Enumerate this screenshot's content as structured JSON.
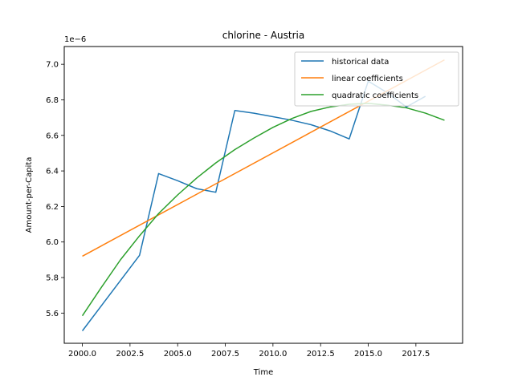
{
  "chart_data": {
    "type": "line",
    "title": "chlorine - Austria",
    "xlabel": "Time",
    "ylabel": "Amount-per-Capita",
    "y_scale_label": "1e−6",
    "xlim": [
      1999.05,
      2019.95
    ],
    "ylim": [
      5.43,
      7.1
    ],
    "xticks": [
      2000.0,
      2002.5,
      2005.0,
      2007.5,
      2010.0,
      2012.5,
      2015.0,
      2017.5
    ],
    "xtick_labels": [
      "2000.0",
      "2002.5",
      "2005.0",
      "2007.5",
      "2010.0",
      "2012.5",
      "2015.0",
      "2017.5"
    ],
    "yticks": [
      5.6,
      5.8,
      6.0,
      6.2,
      6.4,
      6.6,
      6.8,
      7.0
    ],
    "ytick_labels": [
      "5.6",
      "5.8",
      "6.0",
      "6.2",
      "6.4",
      "6.6",
      "6.8",
      "7.0"
    ],
    "grid": false,
    "legend_position": "top-right",
    "series": [
      {
        "name": "historical data",
        "color": "#1f77b4",
        "x": [
          2000,
          2003,
          2004,
          2005,
          2006,
          2007,
          2008,
          2009,
          2010,
          2011,
          2012,
          2013,
          2014,
          2015,
          2016,
          2017,
          2018
        ],
        "y": [
          5.5,
          5.925,
          6.385,
          6.345,
          6.3,
          6.28,
          6.74,
          6.725,
          6.705,
          6.685,
          6.66,
          6.625,
          6.58,
          6.905,
          6.84,
          6.76,
          6.82
        ]
      },
      {
        "name": "linear coefficients",
        "color": "#ff7f0e",
        "x": [
          2000,
          2019
        ],
        "y": [
          5.92,
          7.025
        ]
      },
      {
        "name": "quadratic coefficients",
        "color": "#2ca02c",
        "x": [
          2000,
          2001,
          2002,
          2003,
          2004,
          2005,
          2006,
          2007,
          2008,
          2009,
          2010,
          2011,
          2012,
          2013,
          2014,
          2015,
          2016,
          2017,
          2018,
          2019
        ],
        "y": [
          5.585,
          5.745,
          5.9,
          6.035,
          6.16,
          6.265,
          6.36,
          6.445,
          6.52,
          6.585,
          6.645,
          6.695,
          6.735,
          6.76,
          6.775,
          6.78,
          6.77,
          6.755,
          6.725,
          6.685
        ]
      }
    ]
  }
}
